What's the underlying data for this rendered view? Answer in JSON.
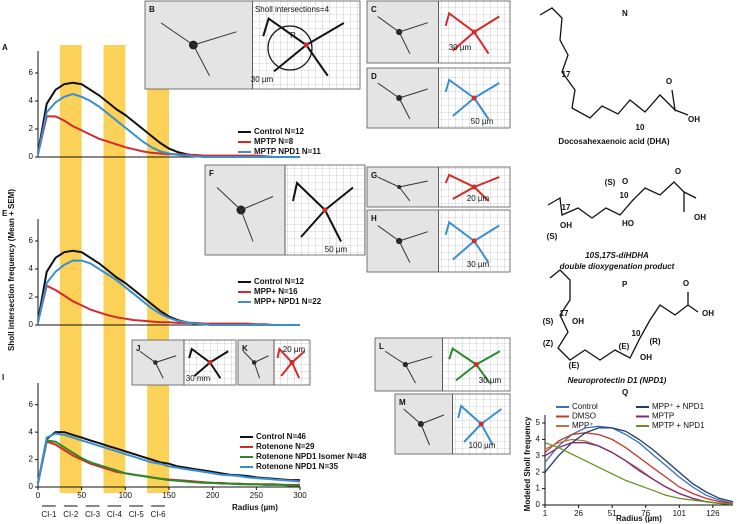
{
  "chart_data": [
    {
      "type": "line",
      "xlim": [
        0,
        300
      ],
      "ylim": [
        0,
        7
      ],
      "yticks": [
        0,
        2,
        4,
        6
      ],
      "x": [
        0,
        10,
        20,
        30,
        40,
        50,
        60,
        70,
        80,
        90,
        100,
        110,
        120,
        130,
        140,
        150,
        160,
        170,
        180,
        190,
        200,
        210,
        220,
        230,
        240,
        250,
        260,
        270,
        280,
        290,
        300
      ],
      "series": [
        {
          "name": "Control N=12",
          "color": "#111111",
          "values": [
            0.3,
            3.8,
            4.8,
            5.2,
            5.3,
            5.2,
            4.8,
            4.4,
            3.9,
            3.4,
            3.0,
            2.5,
            2.0,
            1.5,
            1.0,
            0.6,
            0.35,
            0.2,
            0.1,
            0.05,
            0,
            0,
            0,
            0,
            0,
            0,
            0,
            0,
            0,
            0,
            0
          ]
        },
        {
          "name": "MPTP N=8",
          "color": "#d42a2a",
          "values": [
            0.2,
            2.9,
            2.9,
            2.6,
            2.2,
            1.9,
            1.6,
            1.3,
            1.1,
            0.9,
            0.7,
            0.55,
            0.4,
            0.3,
            0.25,
            0.2,
            0.2,
            0.15,
            0.15,
            0.1,
            0.1,
            0.1,
            0.1,
            0.1,
            0.1,
            0.1,
            0.05,
            0,
            0,
            0,
            0
          ]
        },
        {
          "name": "MPTP NPD1 N=11",
          "color": "#3a8fd0",
          "values": [
            0.2,
            3.2,
            3.9,
            4.3,
            4.5,
            4.3,
            4.0,
            3.6,
            3.1,
            2.6,
            2.1,
            1.6,
            1.1,
            0.7,
            0.4,
            0.25,
            0.15,
            0.1,
            0.05,
            0,
            0,
            0,
            0,
            0,
            0,
            0,
            0,
            0,
            0,
            0,
            0
          ]
        }
      ]
    },
    {
      "type": "line",
      "xlim": [
        0,
        300
      ],
      "ylim": [
        0,
        7
      ],
      "yticks": [
        0,
        2,
        4,
        6
      ],
      "ylabel": "Sholl intersection frequency (Mean + SEM)",
      "x": [
        0,
        10,
        20,
        30,
        40,
        50,
        60,
        70,
        80,
        90,
        100,
        110,
        120,
        130,
        140,
        150,
        160,
        170,
        180,
        190,
        200,
        210,
        220,
        230,
        240,
        250,
        260,
        270,
        280,
        290,
        300
      ],
      "series": [
        {
          "name": "Control N=12",
          "color": "#111111",
          "values": [
            0.3,
            3.8,
            4.8,
            5.2,
            5.3,
            5.2,
            4.8,
            4.4,
            3.9,
            3.4,
            3.0,
            2.5,
            2.0,
            1.5,
            1.0,
            0.6,
            0.35,
            0.2,
            0.1,
            0.05,
            0,
            0,
            0,
            0,
            0,
            0,
            0,
            0,
            0,
            0,
            0
          ]
        },
        {
          "name": "MPP+ N=16",
          "color": "#d42a2a",
          "values": [
            0.2,
            2.8,
            2.5,
            2.1,
            1.7,
            1.4,
            1.1,
            0.9,
            0.7,
            0.55,
            0.45,
            0.35,
            0.3,
            0.25,
            0.2,
            0.2,
            0.15,
            0.15,
            0.15,
            0.1,
            0.1,
            0.1,
            0.1,
            0.1,
            0.1,
            0.05,
            0.05,
            0,
            0,
            0,
            0
          ]
        },
        {
          "name": "MPP+ NPD1 N=22",
          "color": "#3a8fd0",
          "values": [
            0.2,
            3.0,
            3.8,
            4.3,
            4.6,
            4.6,
            4.4,
            4.0,
            3.6,
            3.2,
            2.7,
            2.2,
            1.7,
            1.2,
            0.8,
            0.5,
            0.3,
            0.2,
            0.1,
            0.05,
            0,
            0,
            0,
            0,
            0,
            0,
            0,
            0,
            0,
            0,
            0
          ]
        }
      ]
    },
    {
      "type": "line",
      "xlim": [
        0,
        300
      ],
      "ylim": [
        0,
        7
      ],
      "yticks": [
        0,
        2,
        4,
        6
      ],
      "xticks": [
        0,
        50,
        100,
        150,
        200,
        250,
        300
      ],
      "xlabel": "Radius (µm)",
      "ci_labels": [
        "CI-1",
        "CI-2",
        "CI-3",
        "CI-4",
        "CI-5",
        "CI-6"
      ],
      "ci_edges": [
        0,
        25,
        50,
        75,
        100,
        125,
        150
      ],
      "ci_highlighted": [
        false,
        true,
        false,
        true,
        false,
        true
      ],
      "x": [
        0,
        10,
        20,
        30,
        40,
        50,
        60,
        70,
        80,
        90,
        100,
        110,
        120,
        130,
        140,
        150,
        160,
        170,
        180,
        190,
        200,
        210,
        220,
        230,
        240,
        250,
        260,
        270,
        280,
        290,
        300
      ],
      "series": [
        {
          "name": "Control N=46",
          "color": "#111111",
          "values": [
            0.3,
            3.5,
            4.0,
            4.0,
            3.8,
            3.6,
            3.4,
            3.2,
            3.0,
            2.8,
            2.6,
            2.4,
            2.2,
            2.0,
            1.8,
            1.7,
            1.5,
            1.4,
            1.3,
            1.2,
            1.1,
            1.0,
            0.9,
            0.85,
            0.8,
            0.7,
            0.65,
            0.6,
            0.55,
            0.5,
            0.5
          ]
        },
        {
          "name": "Rotenone N=29",
          "color": "#d42a2a",
          "values": [
            0.3,
            3.3,
            3.1,
            2.7,
            2.3,
            2.0,
            1.7,
            1.5,
            1.3,
            1.1,
            1.0,
            0.9,
            0.8,
            0.7,
            0.6,
            0.55,
            0.5,
            0.45,
            0.4,
            0.35,
            0.3,
            0.3,
            0.25,
            0.25,
            0.2,
            0.2,
            0.2,
            0.2,
            0.15,
            0.15,
            0.15
          ]
        },
        {
          "name": "Rotenone NPD1 Isomer N=48",
          "color": "#2a8a2a",
          "values": [
            0.3,
            3.4,
            3.3,
            2.9,
            2.5,
            2.1,
            1.8,
            1.6,
            1.4,
            1.2,
            1.0,
            0.9,
            0.8,
            0.7,
            0.6,
            0.5,
            0.45,
            0.4,
            0.35,
            0.3,
            0.3,
            0.25,
            0.25,
            0.2,
            0.2,
            0.2,
            0.15,
            0.15,
            0.15,
            0.1,
            0.1
          ]
        },
        {
          "name": "Rotenone NPD1 N=35",
          "color": "#3a8fd0",
          "values": [
            0.3,
            3.6,
            3.9,
            3.8,
            3.6,
            3.4,
            3.2,
            3.0,
            2.8,
            2.6,
            2.4,
            2.2,
            2.0,
            1.8,
            1.7,
            1.5,
            1.4,
            1.3,
            1.2,
            1.1,
            1.0,
            0.9,
            0.85,
            0.8,
            0.7,
            0.65,
            0.6,
            0.55,
            0.5,
            0.45,
            0.4
          ]
        }
      ]
    },
    {
      "type": "line",
      "xlim": [
        1,
        141
      ],
      "ylim": [
        0,
        5
      ],
      "yticks": [
        0,
        1,
        2,
        3,
        4,
        5
      ],
      "xticks": [
        1,
        26,
        51,
        76,
        101,
        126
      ],
      "xlabel": "Radius (µm)",
      "ylabel": "Modeled Sholl frequency",
      "x": [
        1,
        11,
        21,
        31,
        41,
        51,
        61,
        71,
        81,
        91,
        101,
        111,
        121,
        131,
        141
      ],
      "series": [
        {
          "name": "Control",
          "color": "#3b6fc4",
          "values": [
            2.6,
            3.6,
            4.3,
            4.7,
            4.8,
            4.7,
            4.3,
            3.8,
            3.1,
            2.4,
            1.7,
            1.1,
            0.6,
            0.3,
            0.1
          ]
        },
        {
          "name": "DMSO",
          "color": "#c0392b",
          "values": [
            3.2,
            3.9,
            4.3,
            4.4,
            4.3,
            4.0,
            3.5,
            2.9,
            2.3,
            1.7,
            1.1,
            0.7,
            0.4,
            0.2,
            0.1
          ]
        },
        {
          "name": "MPP⁺",
          "color": "#b07a3a",
          "values": [
            3.4,
            3.8,
            4.0,
            3.9,
            3.6,
            3.2,
            2.7,
            2.2,
            1.6,
            1.1,
            0.7,
            0.4,
            0.2,
            0.1,
            0.05
          ]
        },
        {
          "name": "MPP⁺ + NPD1",
          "color": "#1f3a6e",
          "values": [
            2.0,
            3.0,
            3.8,
            4.4,
            4.7,
            4.7,
            4.5,
            4.0,
            3.4,
            2.7,
            2.0,
            1.3,
            0.8,
            0.4,
            0.2
          ]
        },
        {
          "name": "MPTP",
          "color": "#7b2a7b",
          "values": [
            3.0,
            3.5,
            3.8,
            3.8,
            3.6,
            3.2,
            2.7,
            2.1,
            1.6,
            1.1,
            0.7,
            0.4,
            0.2,
            0.1,
            0.05
          ]
        },
        {
          "name": "MPTP + NPD1",
          "color": "#6b8e23",
          "values": [
            3.8,
            3.5,
            3.1,
            2.7,
            2.3,
            1.9,
            1.5,
            1.2,
            0.9,
            0.6,
            0.4,
            0.3,
            0.2,
            0.1,
            0.05
          ]
        }
      ]
    }
  ],
  "panel_letters": [
    "A",
    "E",
    "I",
    "N",
    "O",
    "P",
    "Q"
  ],
  "insets": [
    {
      "letter": "B",
      "labels": [
        "Sholl intersections=4",
        "R",
        "30 µm"
      ]
    },
    {
      "letter": "C",
      "labels": [
        "30 µm"
      ]
    },
    {
      "letter": "D",
      "labels": [
        "50 µm"
      ]
    },
    {
      "letter": "F",
      "labels": [
        "50 µm"
      ]
    },
    {
      "letter": "G",
      "labels": [
        "20 µm"
      ]
    },
    {
      "letter": "H",
      "labels": [
        "30 µm"
      ]
    },
    {
      "letter": "J",
      "labels": [
        "30 mm"
      ]
    },
    {
      "letter": "K",
      "labels": [
        "20 µm"
      ]
    },
    {
      "letter": "L",
      "labels": [
        "30 µm"
      ]
    },
    {
      "letter": "M",
      "labels": [
        "100 µm"
      ]
    }
  ],
  "structures": [
    {
      "atoms": [
        "17",
        "10",
        "OH",
        "O"
      ],
      "caption": [
        "Docosahexaenoic acid (DHA)"
      ]
    },
    {
      "atoms": [
        "(S)",
        "10",
        "17",
        "(S)",
        "OH",
        "HO",
        "O",
        "OH"
      ],
      "caption": [
        "10S,17S-diHDHA",
        "double dioxygenation product"
      ]
    },
    {
      "atoms": [
        "(S)",
        "17",
        "OH",
        "(Z)",
        "(E)",
        "(E)",
        "10",
        "(R)",
        "OH",
        "O",
        "OH"
      ],
      "caption": [
        "Neuroprotectin D1 (NPD1)"
      ]
    }
  ]
}
